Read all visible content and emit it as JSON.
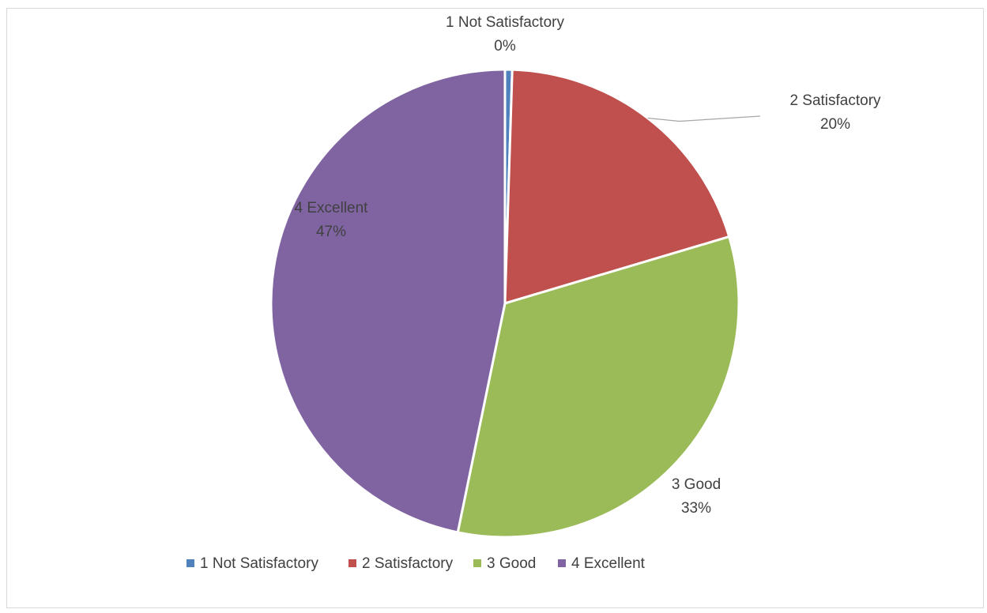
{
  "chart_data": {
    "type": "pie",
    "categories": [
      "1 Not Satisfactory",
      "2 Satisfactory",
      "3 Good",
      "4 Excellent"
    ],
    "values": [
      0.5,
      20,
      33,
      47
    ],
    "data_labels": [
      "0%",
      "20%",
      "33%",
      "47%"
    ],
    "colors": [
      "#4f81bd",
      "#c0504d",
      "#9bbb59",
      "#8064a2"
    ],
    "legend_position": "bottom",
    "leader_line": "2 Satisfactory",
    "title": ""
  }
}
